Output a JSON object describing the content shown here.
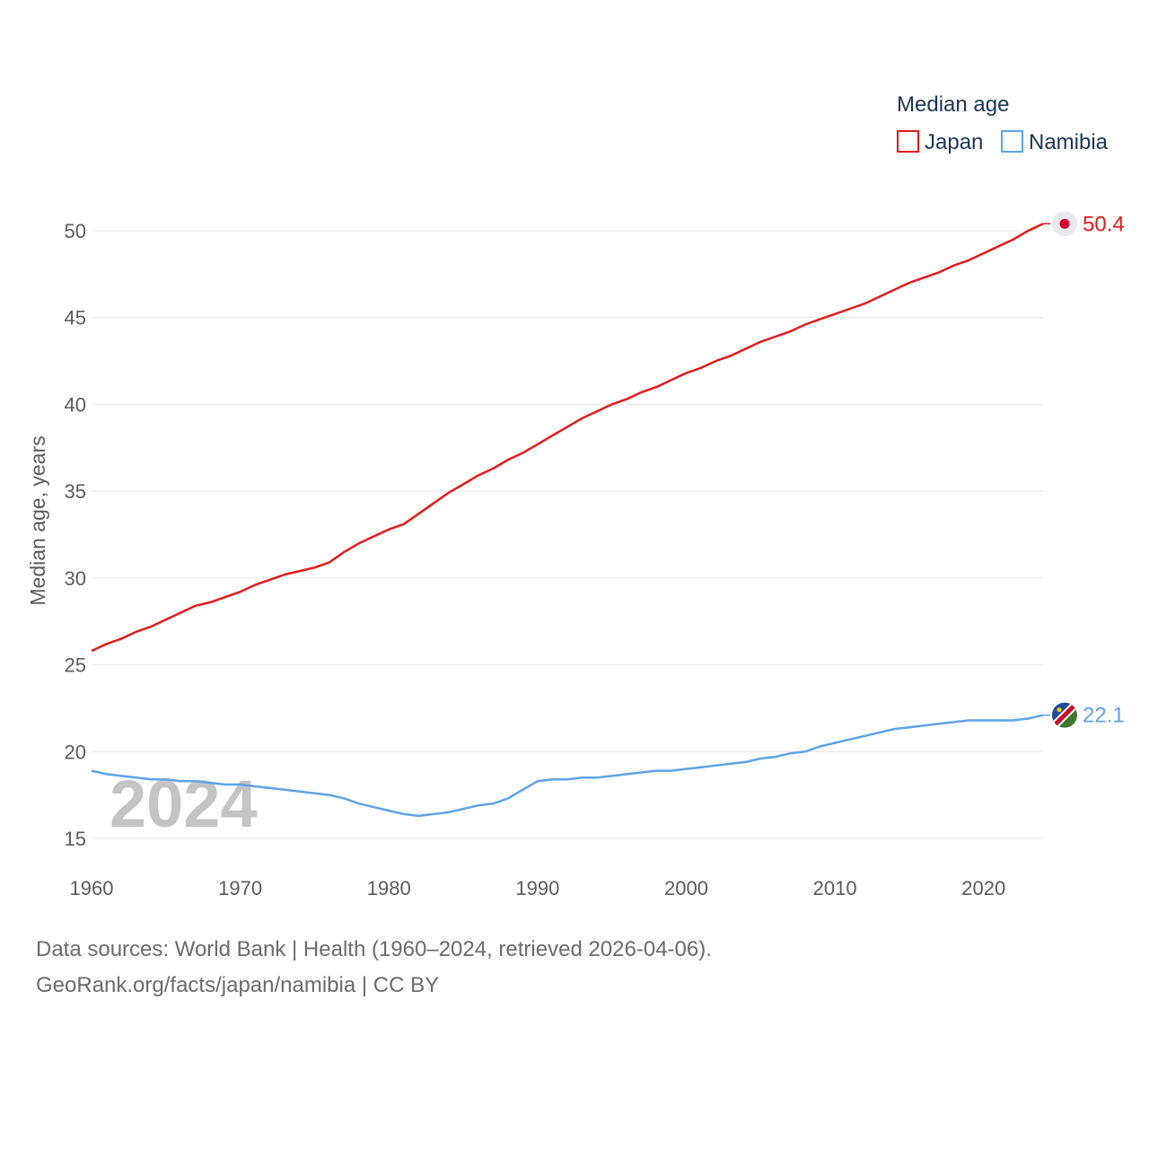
{
  "chart_data": {
    "type": "line",
    "title": "Median age",
    "ylabel": "Median age, years",
    "xlabel": "",
    "ylim": [
      15,
      52
    ],
    "xlim": [
      1960,
      2024
    ],
    "yticks": [
      15,
      20,
      25,
      30,
      35,
      40,
      45,
      50
    ],
    "xticks": [
      1960,
      1970,
      1980,
      1990,
      2000,
      2010,
      2020
    ],
    "ytick_labels": [
      "15",
      "20",
      "25",
      "30",
      "35",
      "40",
      "45",
      "50"
    ],
    "xtick_labels": [
      "1960",
      "1970",
      "1980",
      "1990",
      "2000",
      "2010",
      "2020"
    ],
    "grid": true,
    "legend_position": "top-right",
    "year_label": "2024",
    "x": [
      1960,
      1961,
      1962,
      1963,
      1964,
      1965,
      1966,
      1967,
      1968,
      1969,
      1970,
      1971,
      1972,
      1973,
      1974,
      1975,
      1976,
      1977,
      1978,
      1979,
      1980,
      1981,
      1982,
      1983,
      1984,
      1985,
      1986,
      1987,
      1988,
      1989,
      1990,
      1991,
      1992,
      1993,
      1994,
      1995,
      1996,
      1997,
      1998,
      1999,
      2000,
      2001,
      2002,
      2003,
      2004,
      2005,
      2006,
      2007,
      2008,
      2009,
      2010,
      2011,
      2012,
      2013,
      2014,
      2015,
      2016,
      2017,
      2018,
      2019,
      2020,
      2021,
      2022,
      2023,
      2024
    ],
    "series": [
      {
        "name": "Japan",
        "color": "#e31a1c",
        "end_label": "50.4",
        "values": [
          25.8,
          26.2,
          26.5,
          26.9,
          27.2,
          27.6,
          28.0,
          28.4,
          28.6,
          28.9,
          29.2,
          29.6,
          29.9,
          30.2,
          30.4,
          30.6,
          30.9,
          31.5,
          32.0,
          32.4,
          32.8,
          33.1,
          33.7,
          34.3,
          34.9,
          35.4,
          35.9,
          36.3,
          36.8,
          37.2,
          37.7,
          38.2,
          38.7,
          39.2,
          39.6,
          40.0,
          40.3,
          40.7,
          41.0,
          41.4,
          41.8,
          42.1,
          42.5,
          42.8,
          43.2,
          43.6,
          43.9,
          44.2,
          44.6,
          44.9,
          45.2,
          45.5,
          45.8,
          46.2,
          46.6,
          47.0,
          47.3,
          47.6,
          48.0,
          48.3,
          48.7,
          49.1,
          49.5,
          50.0,
          50.4
        ]
      },
      {
        "name": "Namibia",
        "color": "#5ea3e6",
        "end_label": "22.1",
        "values": [
          18.9,
          18.7,
          18.6,
          18.5,
          18.4,
          18.4,
          18.3,
          18.3,
          18.2,
          18.1,
          18.1,
          18.0,
          17.9,
          17.8,
          17.7,
          17.6,
          17.5,
          17.3,
          17.0,
          16.8,
          16.6,
          16.4,
          16.3,
          16.4,
          16.5,
          16.7,
          16.9,
          17.0,
          17.3,
          17.8,
          18.3,
          18.4,
          18.4,
          18.5,
          18.5,
          18.6,
          18.7,
          18.8,
          18.9,
          18.9,
          19.0,
          19.1,
          19.2,
          19.3,
          19.4,
          19.6,
          19.7,
          19.9,
          20.0,
          20.3,
          20.5,
          20.7,
          20.9,
          21.1,
          21.3,
          21.4,
          21.5,
          21.6,
          21.7,
          21.8,
          21.8,
          21.8,
          21.8,
          21.9,
          22.1
        ]
      }
    ]
  },
  "footer": {
    "line1": "Data sources: World Bank | Health (1960–2024, retrieved 2026-04-06).",
    "line2": "GeoRank.org/facts/japan/namibia | CC BY"
  }
}
